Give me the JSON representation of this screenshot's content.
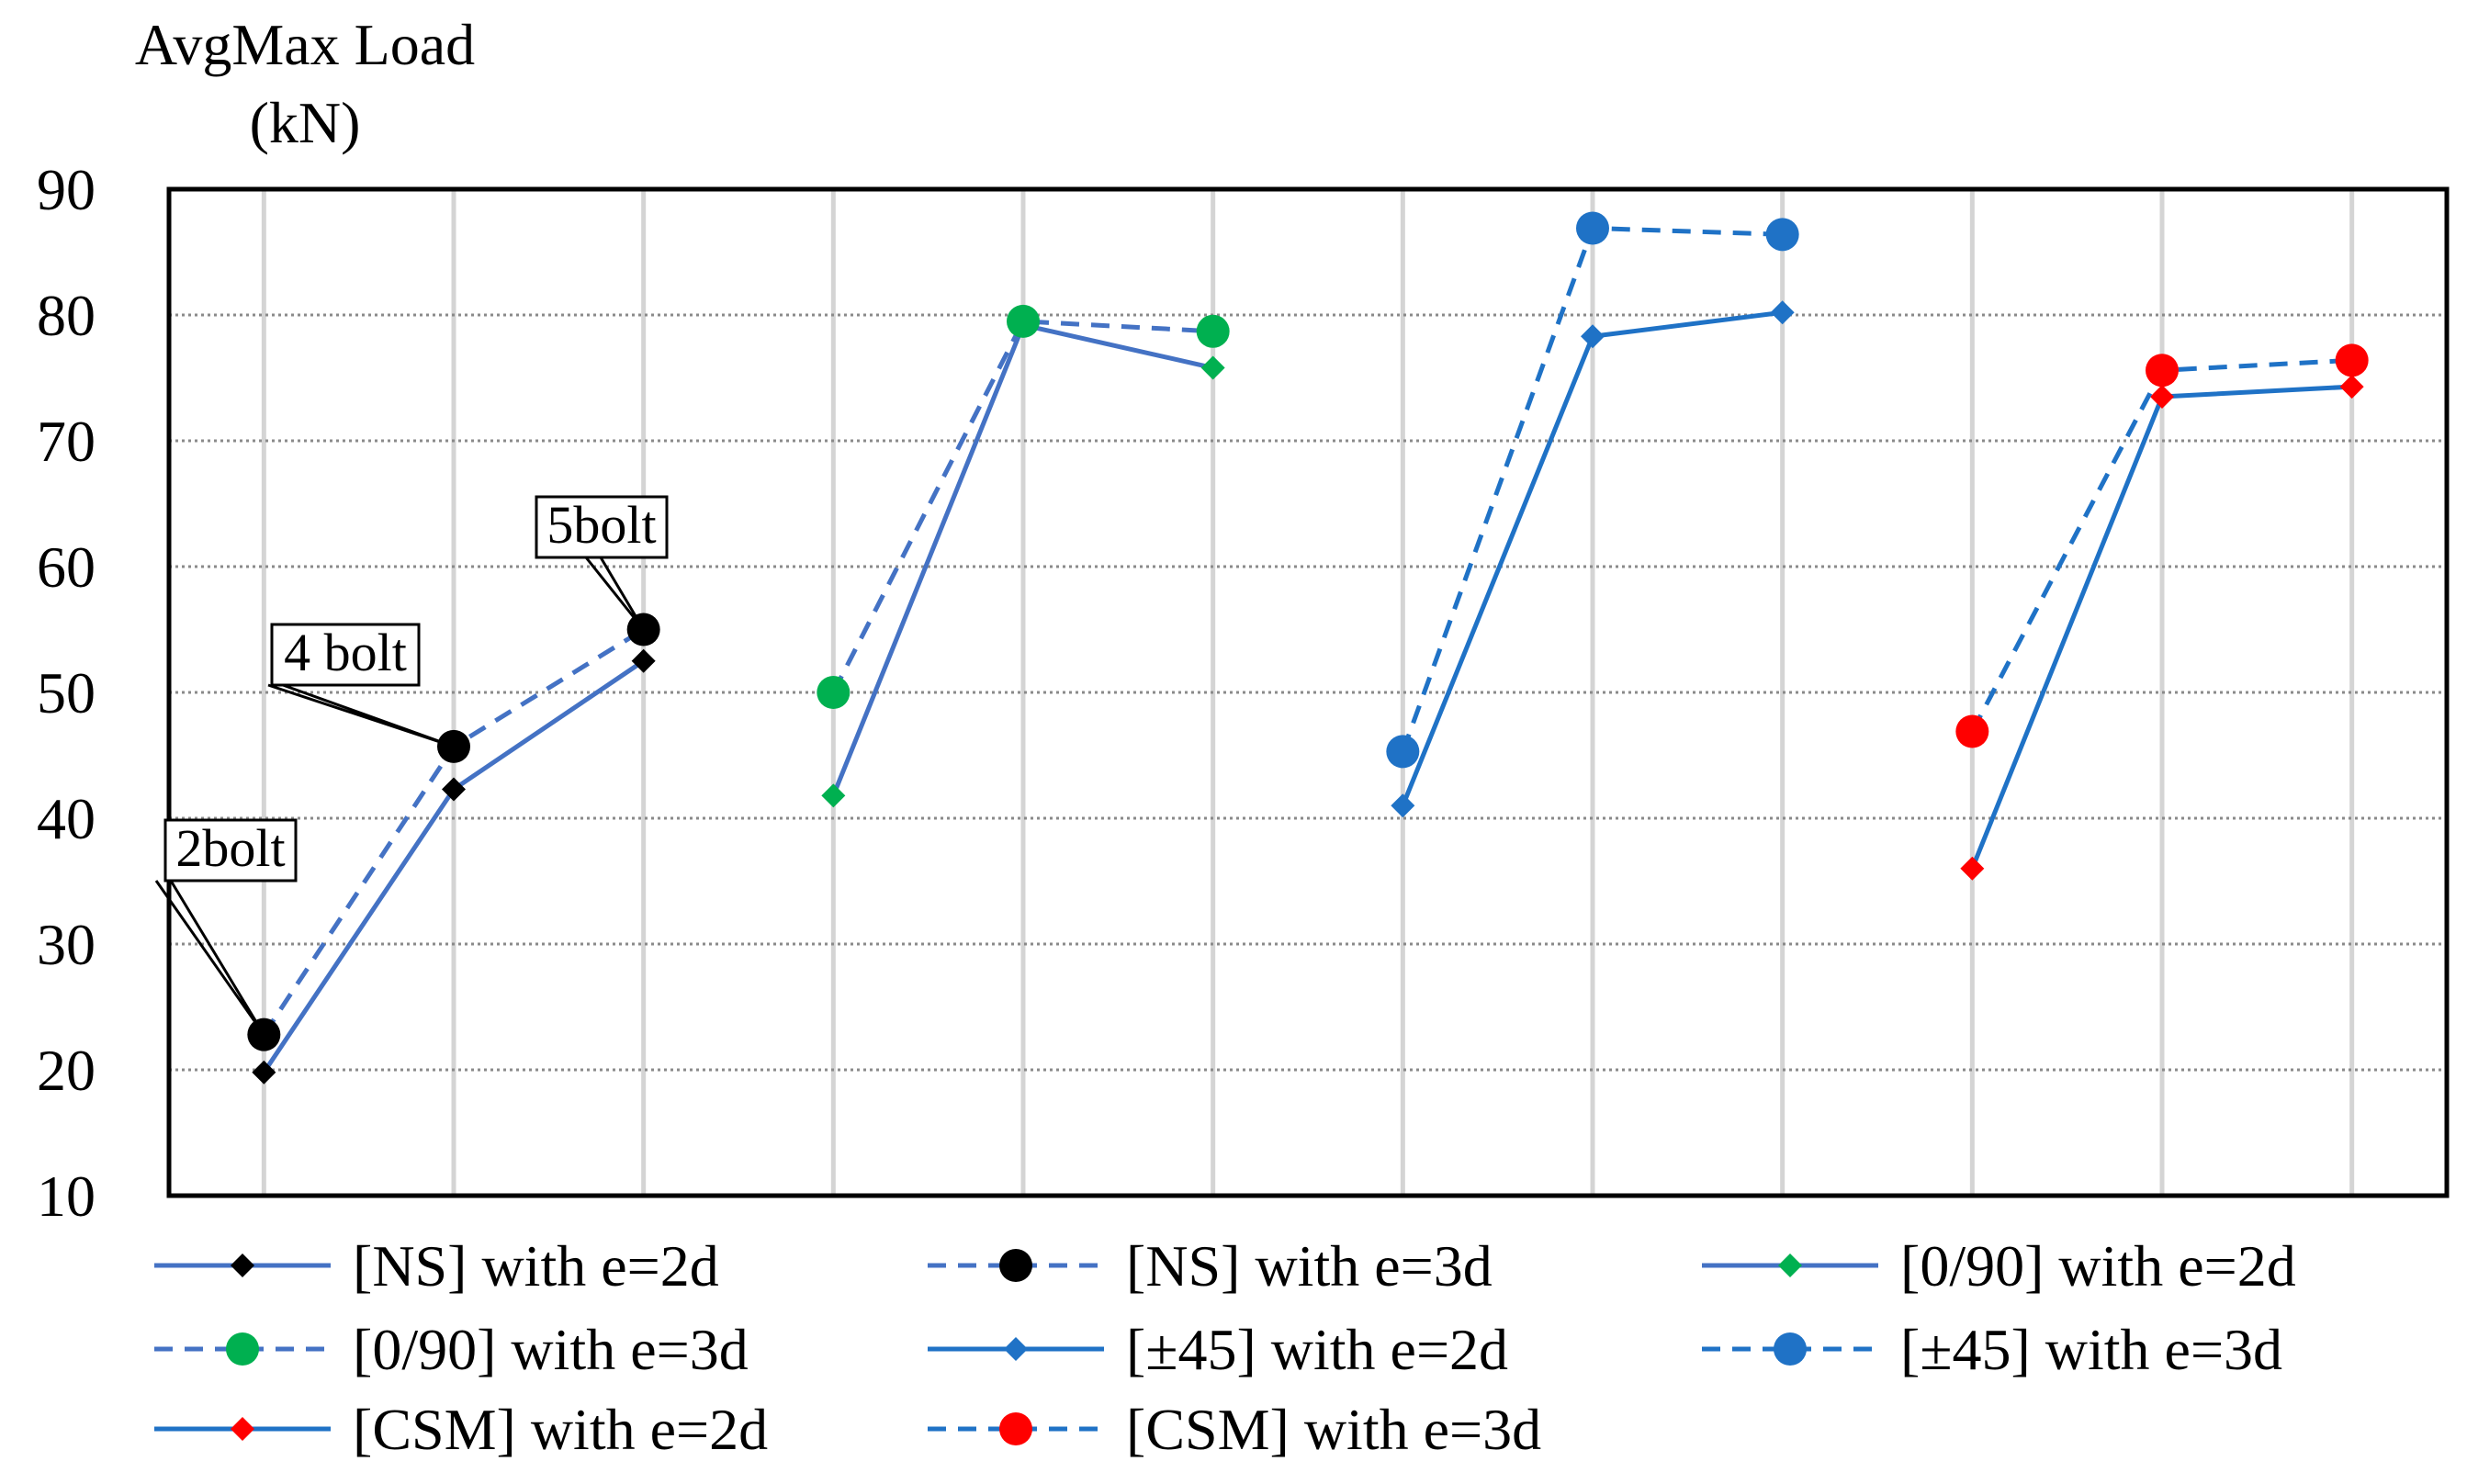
{
  "chart_data": {
    "type": "line",
    "ylabel": "AvgMax Load",
    "yunit": "(kN)",
    "ylim": [
      10,
      90
    ],
    "yticks": [
      10,
      20,
      30,
      40,
      50,
      60,
      70,
      80,
      90
    ],
    "grid": {
      "horizontal": true,
      "horizontal_style": "dotted",
      "vertical": true
    },
    "x_positions": 12,
    "legend_position": "bottom",
    "series": [
      {
        "name": "[NS] with e=2d",
        "color": "#4472C4",
        "marker": "diamond",
        "marker_color": "#000000",
        "dash": false,
        "x": [
          1,
          2,
          3
        ],
        "values": [
          19.8,
          42.3,
          52.5
        ]
      },
      {
        "name": "[NS] with e=3d",
        "color": "#4472C4",
        "marker": "circle",
        "marker_color": "#000000",
        "dash": true,
        "x": [
          1,
          2,
          3
        ],
        "values": [
          22.8,
          45.7,
          55.0
        ]
      },
      {
        "name": "[0/90] with e=2d",
        "color": "#4472C4",
        "marker": "diamond",
        "marker_color": "#00B050",
        "dash": false,
        "x": [
          4,
          5,
          6
        ],
        "values": [
          41.8,
          79.2,
          75.8
        ]
      },
      {
        "name": "[0/90] with e=3d",
        "color": "#4472C4",
        "marker": "circle",
        "marker_color": "#00B050",
        "dash": true,
        "x": [
          4,
          5,
          6
        ],
        "values": [
          50.0,
          79.5,
          78.7
        ]
      },
      {
        "name": "[±45] with e=2d",
        "color": "#1F72C6",
        "marker": "diamond",
        "marker_color": "#1F72C6",
        "dash": false,
        "x": [
          7,
          8,
          9
        ],
        "values": [
          41.0,
          78.3,
          80.2
        ]
      },
      {
        "name": "[±45] with e=3d",
        "color": "#1F72C6",
        "marker": "circle",
        "marker_color": "#1F72C6",
        "dash": true,
        "x": [
          7,
          8,
          9
        ],
        "values": [
          45.3,
          86.9,
          86.4
        ]
      },
      {
        "name": "[CSM] with e=2d",
        "color": "#1F72C6",
        "marker": "diamond",
        "marker_color": "#FF0000",
        "dash": false,
        "x": [
          10,
          11,
          12
        ],
        "values": [
          36.0,
          73.5,
          74.3
        ]
      },
      {
        "name": "[CSM] with e=3d",
        "color": "#1F72C6",
        "marker": "circle",
        "marker_color": "#FF0000",
        "dash": true,
        "x": [
          10,
          11,
          12
        ],
        "values": [
          46.9,
          75.6,
          76.4
        ]
      }
    ],
    "annotations": [
      {
        "text": "2bolt",
        "x": 1,
        "y": 22.8
      },
      {
        "text": "4 bolt",
        "x": 2,
        "y": 45.7
      },
      {
        "text": "5bolt",
        "x": 3,
        "y": 55.0
      }
    ]
  }
}
